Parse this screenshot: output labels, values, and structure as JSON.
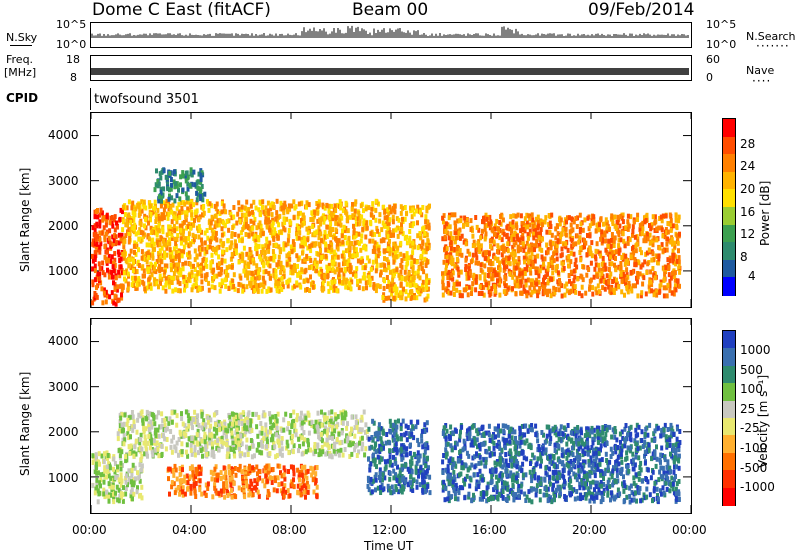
{
  "header": {
    "station": "Dome C East (fitACF)",
    "beam": "Beam 00",
    "date": "09/Feb/2014"
  },
  "strips": {
    "nsky": {
      "label": "N.Sky",
      "ticks": [
        "10^5",
        "10^0"
      ],
      "right_ticks": [
        "10^5",
        "10^0"
      ],
      "right_label": "N.Search"
    },
    "freq": {
      "label_top": "Freq.",
      "label_bottom": "[MHz]",
      "ticks": [
        "18",
        "8"
      ],
      "right_ticks": [
        "60",
        "0"
      ],
      "right_label": "Nave"
    },
    "cpid": {
      "label": "CPID",
      "program": "twofsound 3501"
    }
  },
  "x_axis": {
    "label": "Time UT",
    "ticks": [
      "00:00",
      "04:00",
      "08:00",
      "12:00",
      "16:00",
      "20:00",
      "00:00"
    ]
  },
  "chart_data": [
    {
      "type": "heatmap",
      "name": "power",
      "ylabel": "Slant Range [km]",
      "ylim": [
        200,
        4500
      ],
      "yticks": [
        "4000",
        "3000",
        "2000",
        "1000"
      ],
      "xlim_hours": [
        0,
        24
      ],
      "colorbar": {
        "label": "Power [dB]",
        "ticks": [
          "28",
          "24",
          "20",
          "16",
          "12",
          "8",
          "4"
        ],
        "colors": [
          "#ff0000",
          "#ff4d00",
          "#ff8000",
          "#ffb300",
          "#ffe000",
          "#9acd32",
          "#3ca050",
          "#2e8b6e",
          "#1e5aa0",
          "#0000ff"
        ]
      },
      "regions": [
        {
          "t": [
            0.0,
            1.2
          ],
          "r": [
            300,
            2400
          ],
          "level": 24
        },
        {
          "t": [
            1.2,
            11.5
          ],
          "r": [
            600,
            2600
          ],
          "level": 18
        },
        {
          "t": [
            2.5,
            4.5
          ],
          "r": [
            2600,
            3300
          ],
          "level": 8
        },
        {
          "t": [
            11.5,
            13.5
          ],
          "r": [
            400,
            2500
          ],
          "level": 20
        },
        {
          "t": [
            14.0,
            23.5
          ],
          "r": [
            500,
            2300
          ],
          "level": 22
        }
      ]
    },
    {
      "type": "heatmap",
      "name": "velocity",
      "ylabel": "Slant Range [km]",
      "ylim": [
        200,
        4500
      ],
      "yticks": [
        "4000",
        "3000",
        "2000",
        "1000"
      ],
      "xlim_hours": [
        0,
        24
      ],
      "colorbar": {
        "label": "Velocity [m s⁻¹]",
        "ticks": [
          "1000",
          "500",
          "100",
          "25",
          "-25",
          "-100",
          "-500",
          "-1000"
        ],
        "colors": [
          "#2040c0",
          "#3a70b0",
          "#2e8b6e",
          "#6fc040",
          "#c8c8c0",
          "#e8e870",
          "#ffb030",
          "#ff7000",
          "#ff3000",
          "#ff0000"
        ]
      },
      "regions": [
        {
          "t": [
            0.0,
            2.0
          ],
          "r": [
            500,
            1600
          ],
          "v": -25
        },
        {
          "t": [
            1.0,
            11.0
          ],
          "r": [
            1500,
            2500
          ],
          "v": 0
        },
        {
          "t": [
            3.0,
            9.0
          ],
          "r": [
            600,
            1300
          ],
          "v": -300
        },
        {
          "t": [
            11.0,
            13.5
          ],
          "r": [
            700,
            2300
          ],
          "v": 200
        },
        {
          "t": [
            14.0,
            23.5
          ],
          "r": [
            500,
            2200
          ],
          "v": 300
        }
      ]
    }
  ]
}
